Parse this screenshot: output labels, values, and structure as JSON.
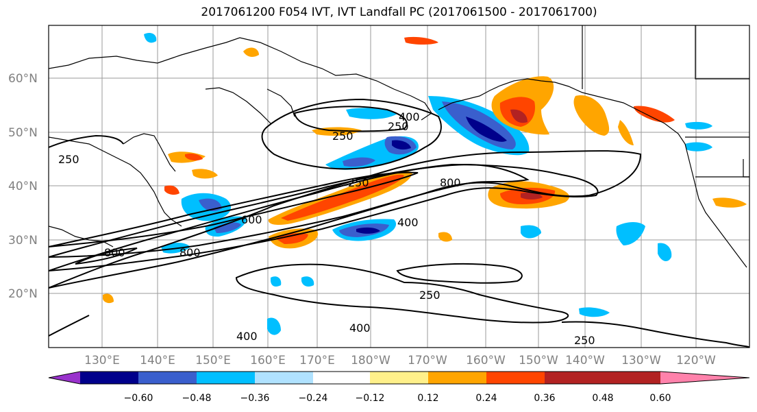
{
  "title": "2017061200 F054 IVT, IVT Landfall PC (2017061500 - 2017061700)",
  "lat_labels": [
    "60°N",
    "50°N",
    "40°N",
    "30°N",
    "20°N"
  ],
  "lon_labels": [
    "130°E",
    "140°E",
    "150°E",
    "160°E",
    "170°E",
    "180°W",
    "170°W",
    "160°W",
    "150°W",
    "140°W",
    "130°W",
    "120°W"
  ],
  "contour_labels": [
    "400",
    "250",
    "250",
    "800",
    "250",
    "400",
    "600",
    "800",
    "800",
    "250",
    "250",
    "400",
    "400",
    "250"
  ],
  "colorbar": {
    "colors": [
      "#9932cc",
      "#00008b",
      "#3a5fcd",
      "#00bfff",
      "#b0e2ff",
      "#ffffff",
      "#fff08a",
      "#ffa500",
      "#ff4500",
      "#b22222",
      "#ff82ab"
    ],
    "tick_labels": [
      "−0.60",
      "−0.48",
      "−0.36",
      "−0.24",
      "−0.12",
      "0.12",
      "0.24",
      "0.36",
      "0.48",
      "0.60"
    ]
  }
}
